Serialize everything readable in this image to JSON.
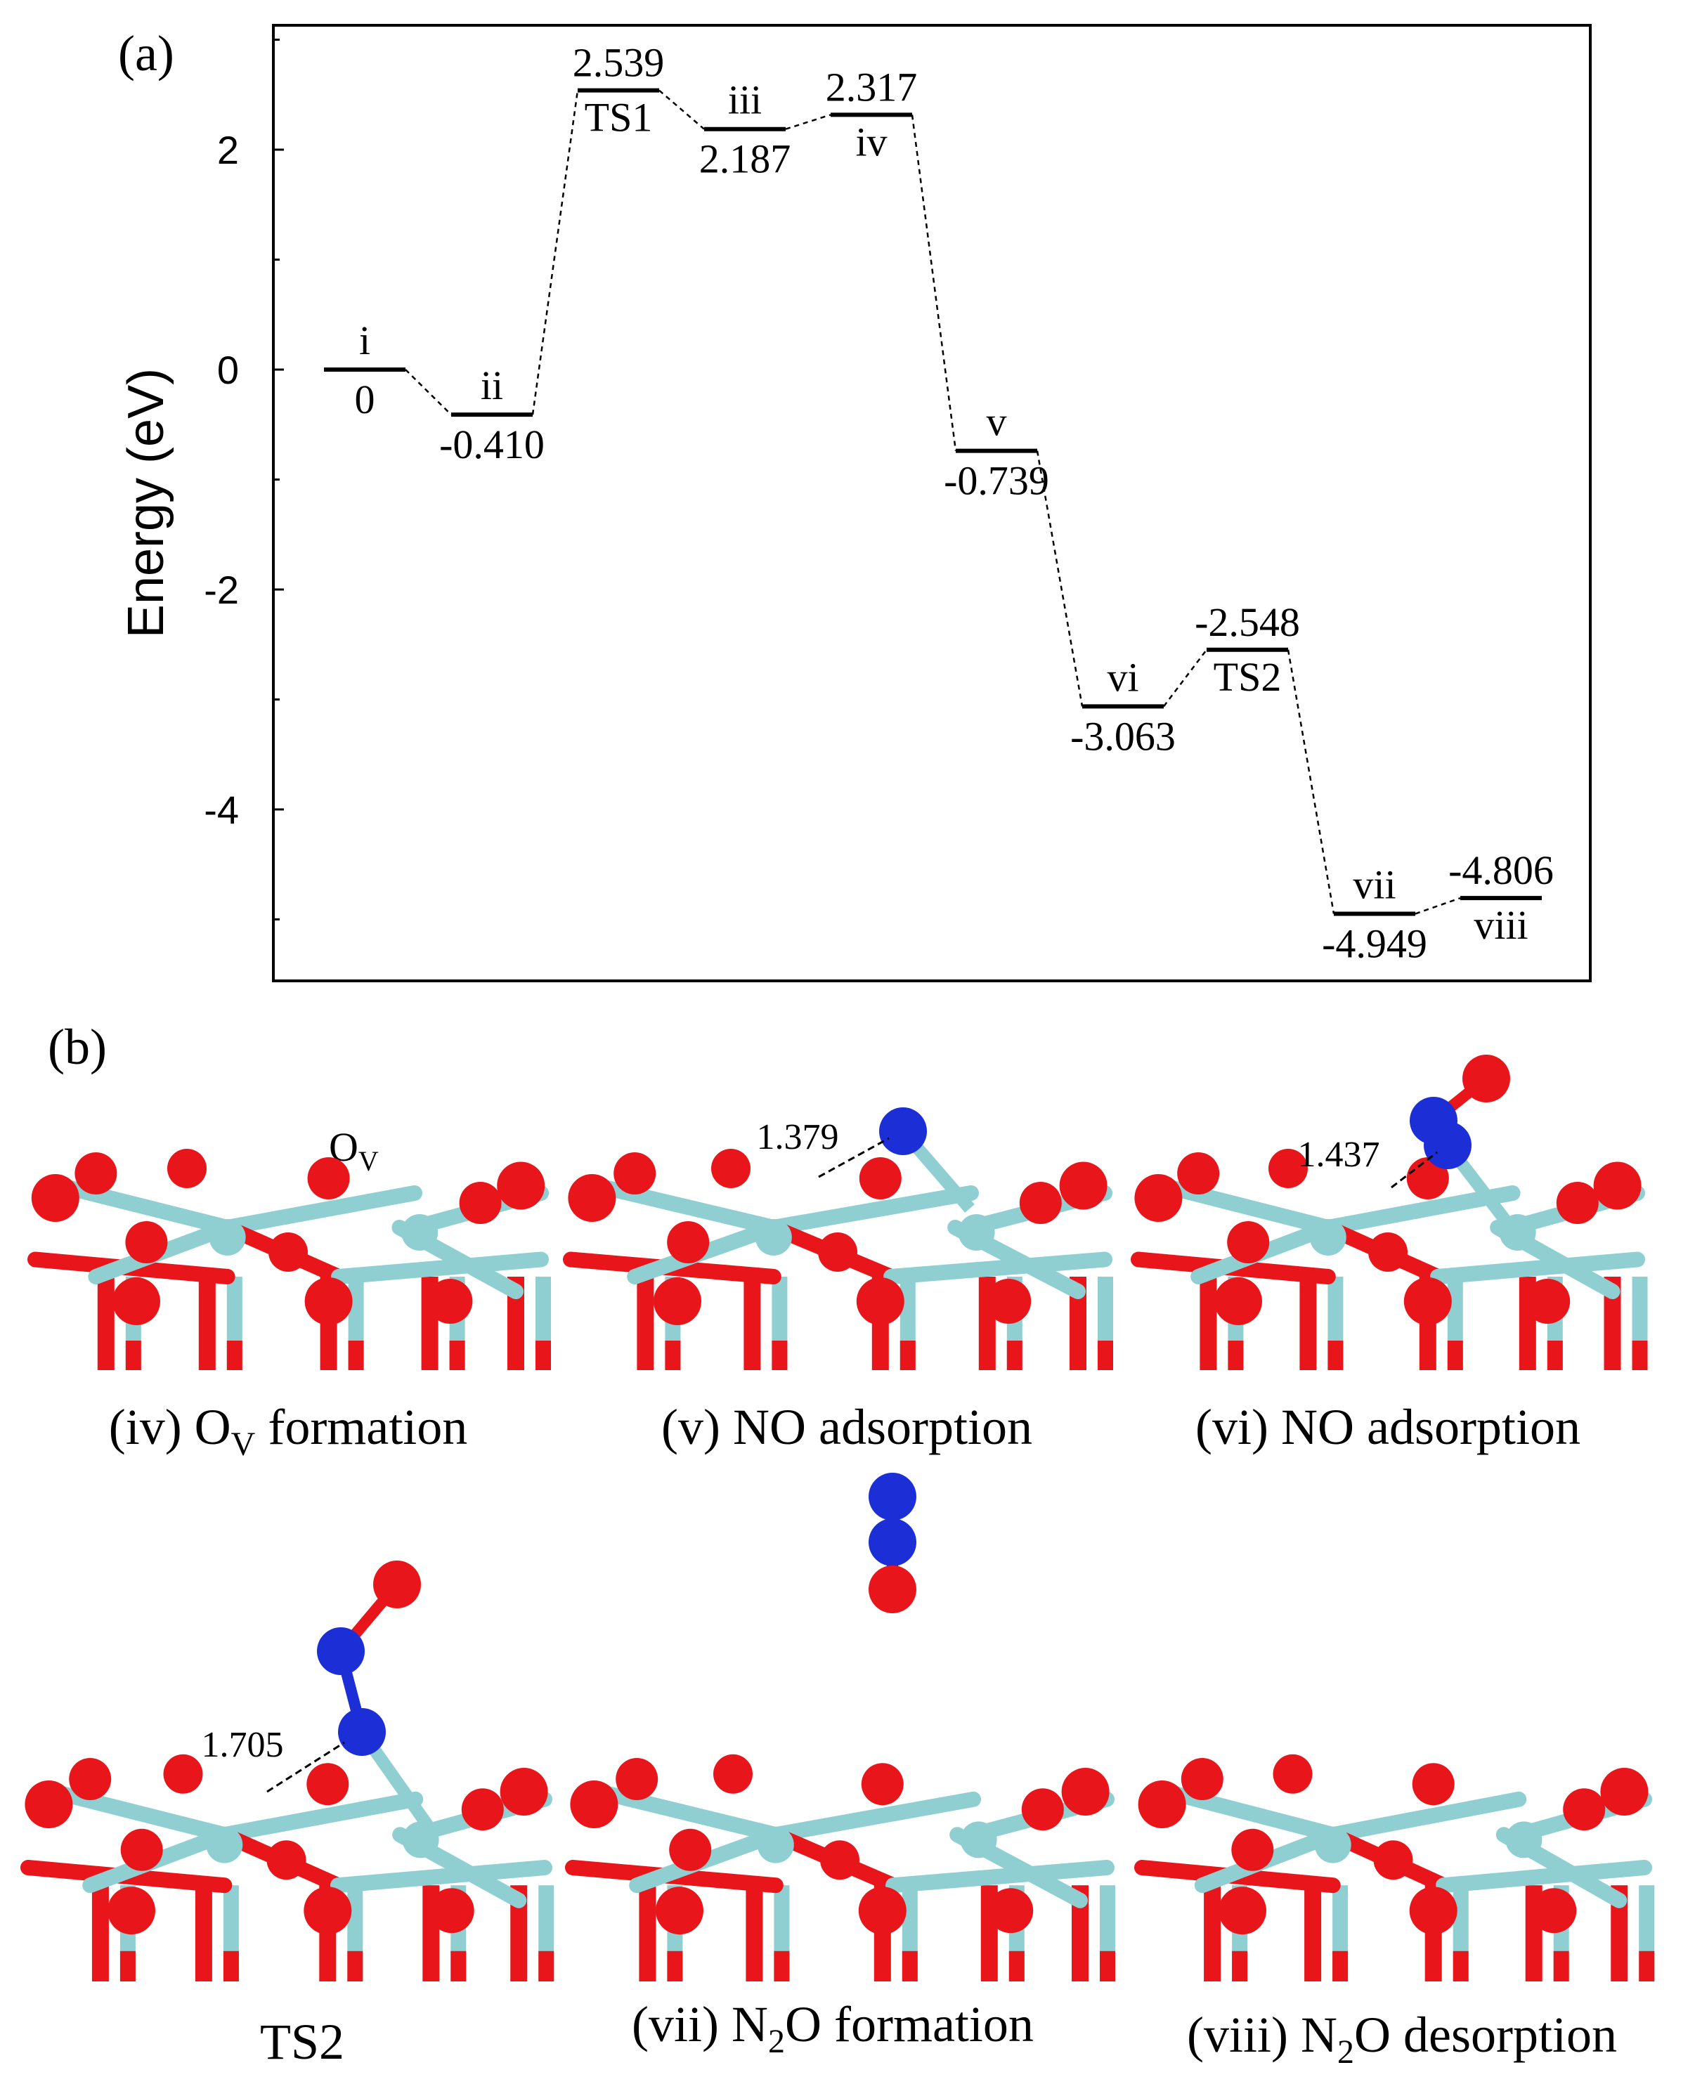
{
  "panel_a": {
    "label": "(a)"
  },
  "panel_b": {
    "label": "(b)",
    "ov_label": {
      "main": "O",
      "sub": "V"
    },
    "structures": [
      {
        "id": "iv",
        "caption_parts": [
          "(iv) O",
          "V",
          " formation"
        ],
        "bond_label": ""
      },
      {
        "id": "v",
        "caption_parts": [
          "(v) NO adsorption",
          "",
          ""
        ],
        "bond_label": "1.379"
      },
      {
        "id": "vi",
        "caption_parts": [
          "(vi) NO adsorption",
          "",
          ""
        ],
        "bond_label": "1.437"
      },
      {
        "id": "TS2",
        "caption_parts": [
          "TS2",
          "",
          ""
        ],
        "bond_label": "1.705"
      },
      {
        "id": "vii",
        "caption_parts": [
          "(vii) N",
          "2",
          "O formation"
        ],
        "bond_label": ""
      },
      {
        "id": "viii",
        "caption_parts": [
          "(viii) N",
          "2",
          "O desorption"
        ],
        "bond_label": ""
      }
    ]
  },
  "colors": {
    "oxygen": "#e8161a",
    "nitrogen": "#1c2fd6",
    "titanium": "#8fcfd2"
  },
  "chart_data": {
    "type": "line",
    "ylabel": "Energy (eV)",
    "xlabel": "",
    "ylim": [
      -5.5,
      3.2
    ],
    "yticks": [
      -4,
      -2,
      0,
      2
    ],
    "grid": false,
    "states": [
      {
        "name": "i",
        "energy": 0,
        "value_label": "0",
        "value_above": false
      },
      {
        "name": "ii",
        "energy": -0.41,
        "value_label": "-0.410",
        "value_above": false
      },
      {
        "name": "TS1",
        "energy": 2.539,
        "value_label": "2.539",
        "value_above": true
      },
      {
        "name": "iii",
        "energy": 2.187,
        "value_label": "2.187",
        "value_above": false
      },
      {
        "name": "iv",
        "energy": 2.317,
        "value_label": "2.317",
        "value_above": true
      },
      {
        "name": "v",
        "energy": -0.739,
        "value_label": "-0.739",
        "value_above": false
      },
      {
        "name": "vi",
        "energy": -3.063,
        "value_label": "-3.063",
        "value_above": false
      },
      {
        "name": "TS2",
        "energy": -2.548,
        "value_label": "-2.548",
        "value_above": true
      },
      {
        "name": "vii",
        "energy": -4.949,
        "value_label": "-4.949",
        "value_above": false
      },
      {
        "name": "viii",
        "energy": -4.806,
        "value_label": "-4.806",
        "value_above": true
      }
    ]
  }
}
